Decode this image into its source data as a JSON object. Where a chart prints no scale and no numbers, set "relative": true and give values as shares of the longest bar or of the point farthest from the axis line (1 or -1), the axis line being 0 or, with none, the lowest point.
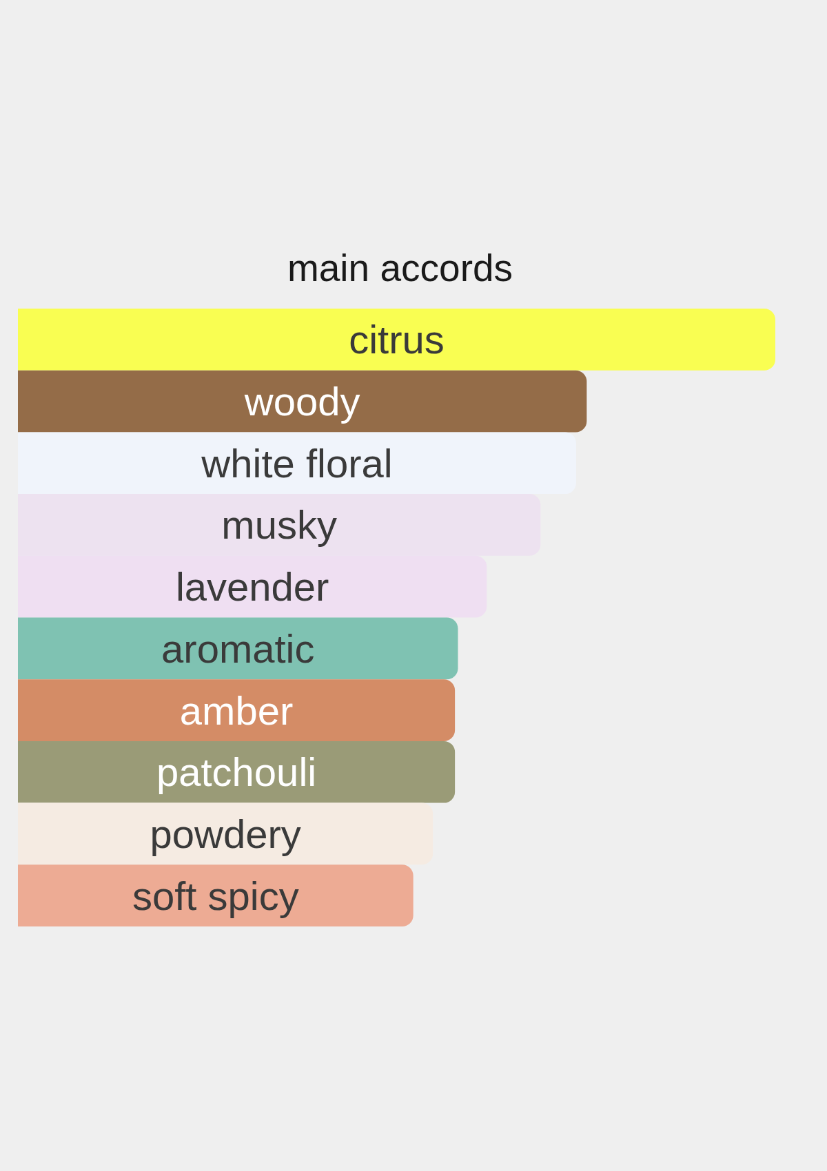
{
  "chart_data": {
    "type": "bar",
    "orientation": "horizontal",
    "relative": true,
    "title": "main accords",
    "categories": [
      "citrus",
      "woody",
      "white floral",
      "musky",
      "lavender",
      "aromatic",
      "amber",
      "patchouli",
      "powdery",
      "soft spicy"
    ],
    "values": [
      1,
      0.751,
      0.737,
      0.69,
      0.619,
      0.581,
      0.577,
      0.577,
      0.548,
      0.522
    ],
    "colors": [
      "#f9fe52",
      "#946c48",
      "#f0f4fb",
      "#ede2f0",
      "#efdff2",
      "#7fc2b2",
      "#d48c66",
      "#9a9b77",
      "#f5ebe2",
      "#edab94"
    ]
  }
}
